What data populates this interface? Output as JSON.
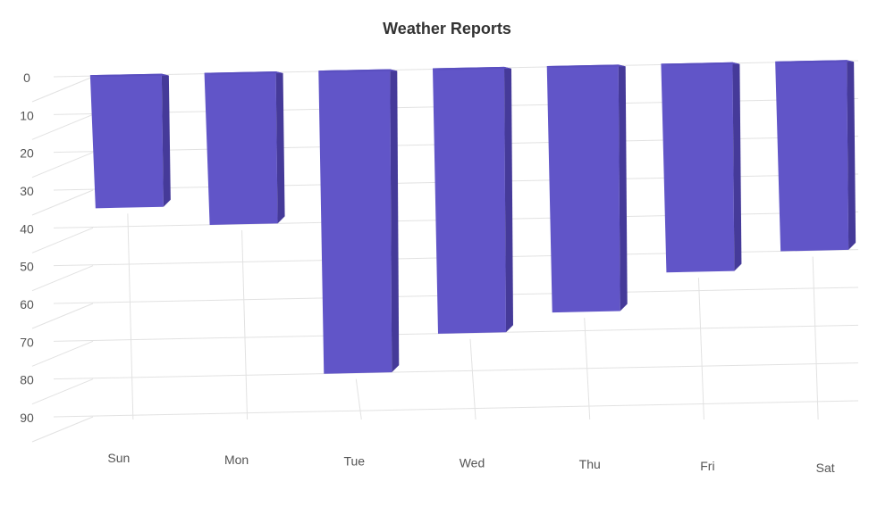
{
  "chart_data": {
    "type": "bar",
    "title": "Weather Reports",
    "categories": [
      "Sun",
      "Mon",
      "Tue",
      "Wed",
      "Thu",
      "Fri",
      "Sat"
    ],
    "values": [
      35,
      40,
      80,
      70,
      65,
      55,
      50
    ],
    "ylim": [
      0,
      90
    ],
    "yticks": [
      0,
      10,
      20,
      30,
      40,
      50,
      60,
      70,
      80,
      90
    ],
    "y_inverted": true,
    "three_d": true,
    "grid": true,
    "colors": {
      "bar_front": "#6155c8",
      "bar_side": "#453a99",
      "bar_top": "#5a4fc0",
      "grid": "#e2e2e2"
    }
  }
}
